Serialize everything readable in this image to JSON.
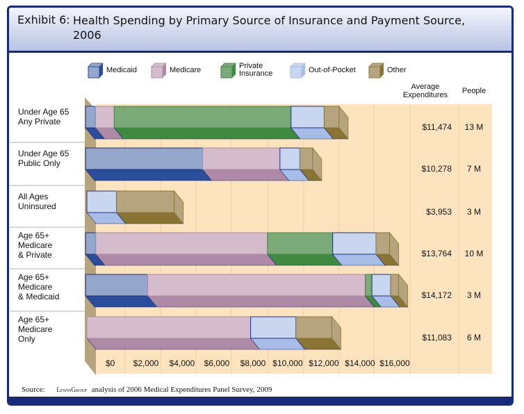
{
  "title_label": "Exhibit 6:",
  "title_text": "Health Spending by Primary Source of Insurance and Payment Source, 2006",
  "source_label": "Source:",
  "source_logo": "LewinGroup",
  "source_text": "analysis of 2006 Medical Expenditures Panel Survey, 2009",
  "chart_data": {
    "type": "bar",
    "orientation": "horizontal",
    "stacked": true,
    "title": "Health Spending by Primary Source of Insurance and Payment Source, 2006",
    "categories": [
      "Under Age 65\nAny Private",
      "Under Age 65\nPublic Only",
      "All Ages\nUninsured",
      "Age 65+\nMedicare\n& Private",
      "Age 65+\nMedicare\n& Medicaid",
      "Age 65+\nMedicare\nOnly"
    ],
    "series": [
      {
        "name": "Medicaid",
        "values": [
          450,
          5300,
          0,
          466,
          2816,
          0
        ],
        "color": "#94a6cc",
        "shade": "#2a4d9c"
      },
      {
        "name": "Medicare",
        "values": [
          850,
          3500,
          0,
          7768,
          9842,
          7410
        ],
        "color": "#d4bccc",
        "shade": "#ae8aa6"
      },
      {
        "name": "Private Insurance",
        "values": [
          8000,
          0,
          0,
          2952,
          303,
          0
        ],
        "color": "#7aaa78",
        "shade": "#3f8a40"
      },
      {
        "name": "Out-of-Pocket",
        "values": [
          1500,
          900,
          1340,
          1958,
          848,
          2044
        ],
        "color": "#c8d6f0",
        "shade": "#a7bde8"
      },
      {
        "name": "Other",
        "values": [
          674,
          578,
          2613,
          620,
          363,
          1629
        ],
        "color": "#b5a47e",
        "shade": "#8a7433"
      }
    ],
    "columns": {
      "avg_header": "Average Expenditures",
      "people_header": "People",
      "avg": [
        "$11,474",
        "$10,278",
        "$3,953",
        "$13,764",
        "$14,172",
        "$11,083"
      ],
      "people": [
        "13 M",
        "7 M",
        "3 M",
        "10 M",
        "3 M",
        "6 M"
      ]
    },
    "xticks": [
      "$0",
      "$2,000",
      "$4,000",
      "$6,000",
      "$8,000",
      "$10,000",
      "$12,000",
      "$14,000",
      "$16,000"
    ],
    "xlim": [
      0,
      16000
    ],
    "legend_position": "top",
    "grid": true
  }
}
